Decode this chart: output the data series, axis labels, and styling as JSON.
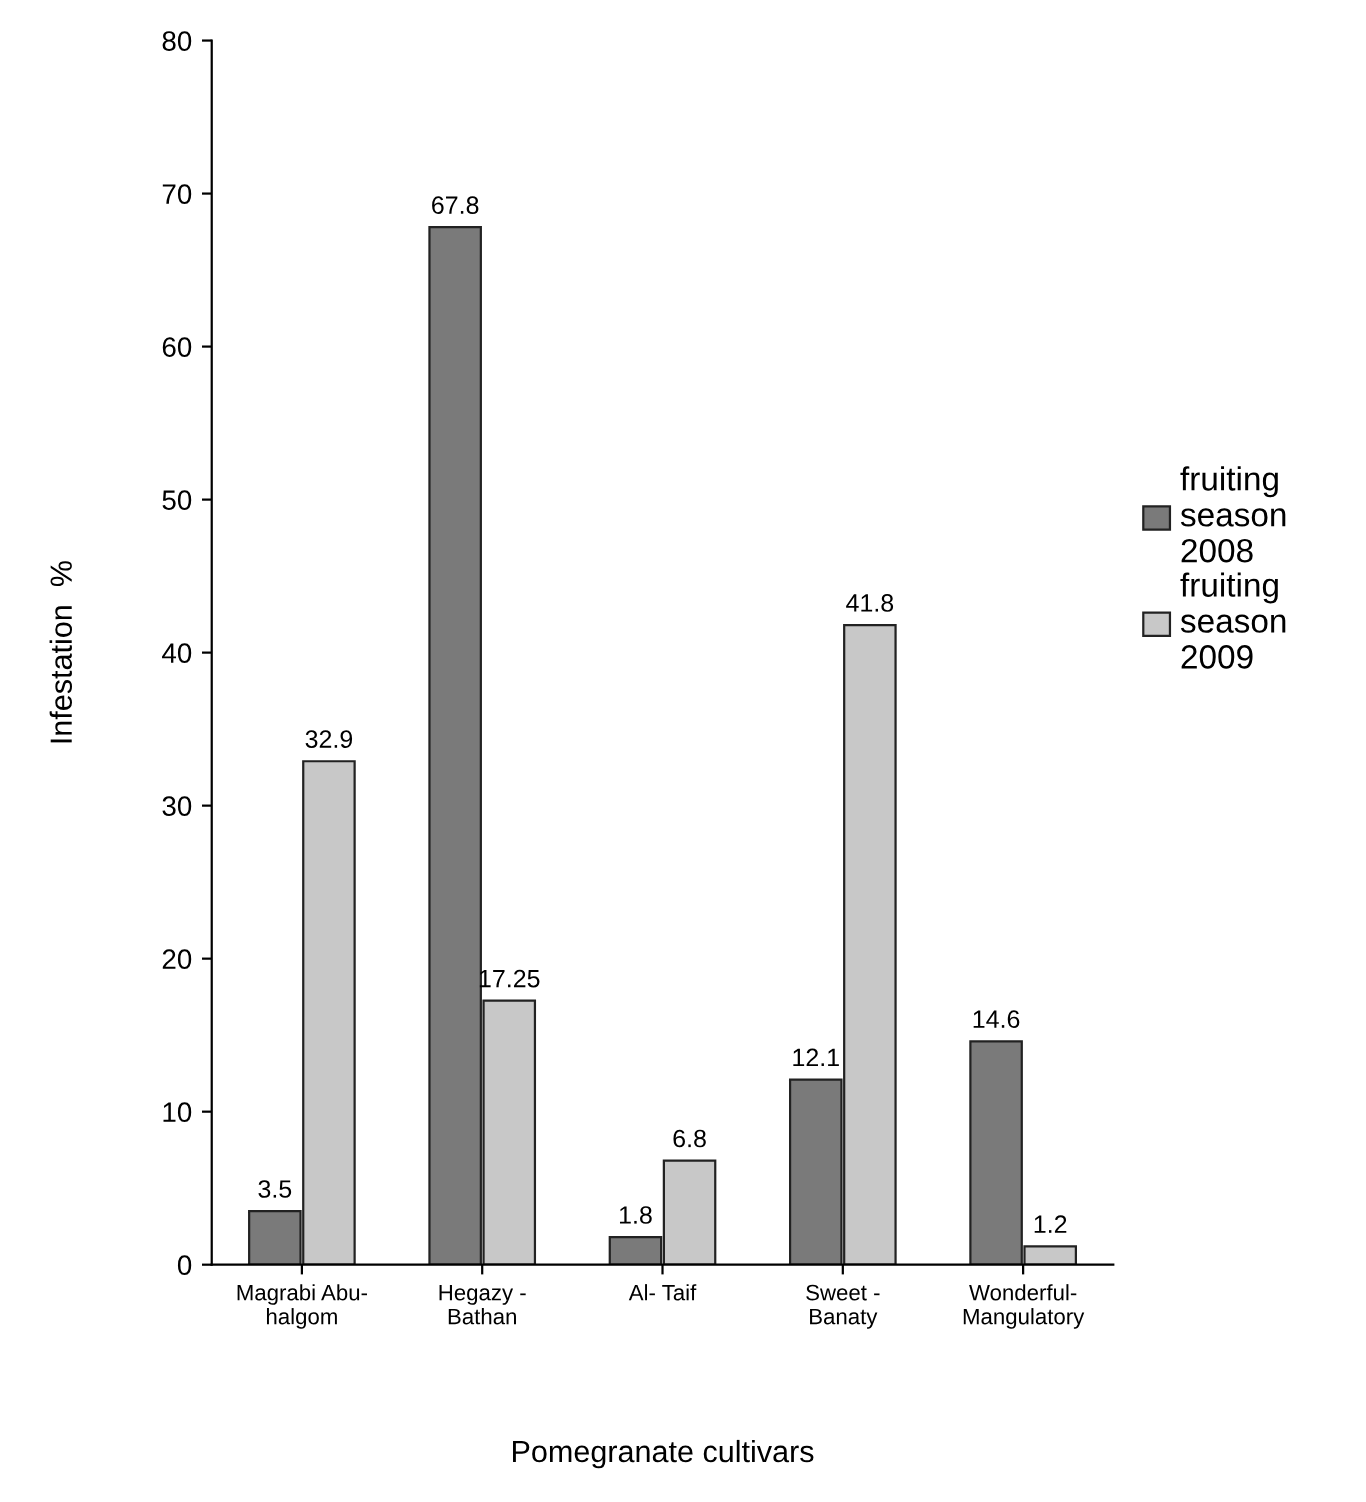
{
  "chart_data": {
    "type": "bar",
    "xlabel": "Pomegranate cultivars",
    "ylabel": "Infestation  %",
    "categories": [
      "Magrabi Abu-\nhalgom",
      "Hegazy -\nBathan",
      "Al- Taif",
      "Sweet -\nBanaty",
      "Wonderful-\nMangulatory"
    ],
    "series": [
      {
        "name": "fruiting season 2008",
        "color": "#7a7a7a",
        "values": [
          3.5,
          67.8,
          1.8,
          12.1,
          14.6
        ]
      },
      {
        "name": "fruiting season 2009",
        "color": "#c8c8c8",
        "values": [
          32.9,
          17.25,
          6.8,
          41.8,
          1.2
        ]
      }
    ],
    "ylim": [
      0,
      80
    ],
    "yticks": [
      0,
      10,
      20,
      30,
      40,
      50,
      60,
      70,
      80
    ],
    "grid": false,
    "legend": "right",
    "data_labels": true
  }
}
